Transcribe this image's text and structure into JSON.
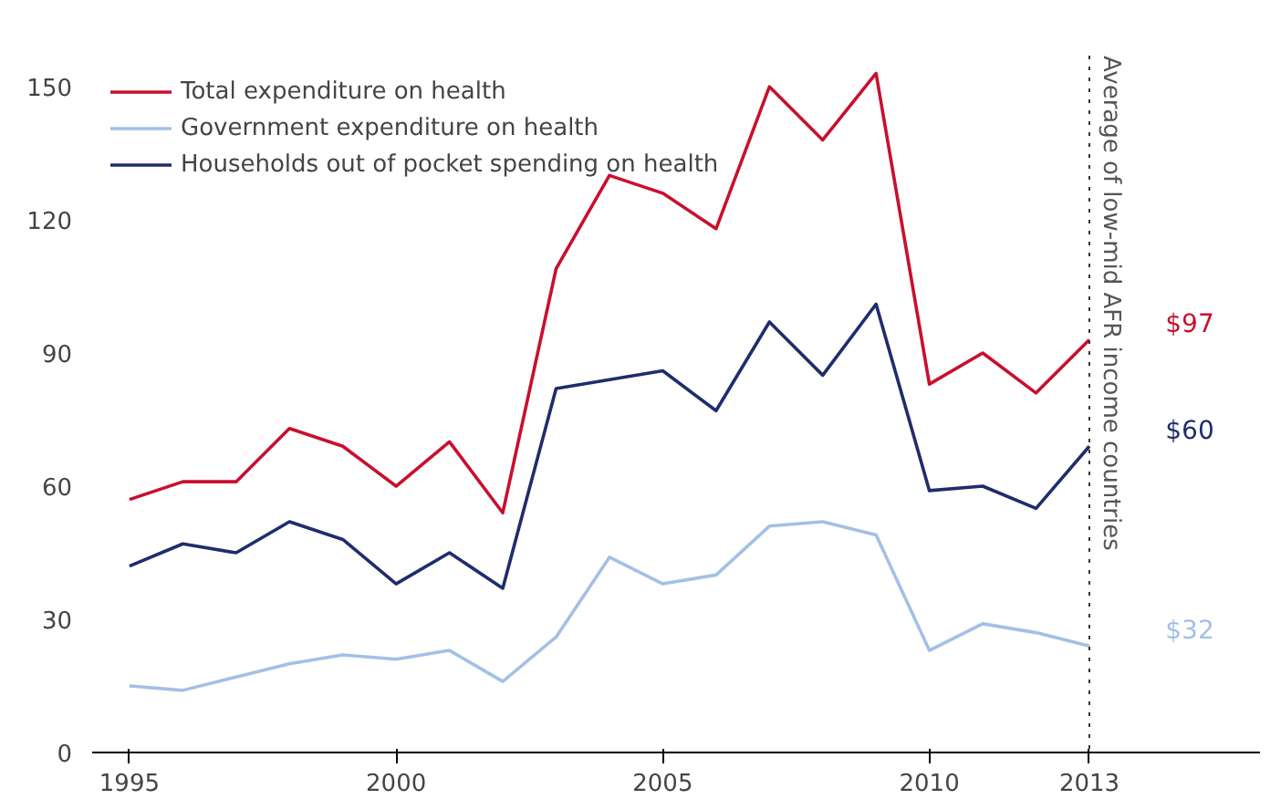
{
  "chart_data": {
    "type": "line",
    "x": [
      1995,
      1996,
      1997,
      1998,
      1999,
      2000,
      2001,
      2002,
      2003,
      2004,
      2005,
      2006,
      2007,
      2008,
      2009,
      2010,
      2011,
      2012,
      2013
    ],
    "series": [
      {
        "name": "Total expenditure on health",
        "color": "#c8102e",
        "values": [
          57,
          61,
          61,
          73,
          69,
          60,
          70,
          54,
          109,
          130,
          126,
          118,
          150,
          138,
          153,
          83,
          90,
          81,
          93
        ]
      },
      {
        "name": "Government expenditure on health",
        "color": "#a3c0e6",
        "values": [
          15,
          14,
          17,
          20,
          22,
          21,
          23,
          16,
          26,
          44,
          38,
          40,
          51,
          52,
          49,
          23,
          29,
          27,
          24
        ]
      },
      {
        "name": "Households out of pocket spending on health",
        "color": "#1f2d6b",
        "values": [
          42,
          47,
          45,
          52,
          48,
          38,
          45,
          37,
          82,
          84,
          86,
          77,
          97,
          85,
          101,
          59,
          60,
          55,
          69
        ]
      }
    ],
    "xlim": [
      1994.3,
      2016.2
    ],
    "ylim": [
      0,
      157
    ],
    "xticks": [
      1995,
      2000,
      2005,
      2010,
      2013
    ],
    "yticks": [
      0,
      30,
      60,
      90,
      120,
      150
    ],
    "ref_lines": [
      {
        "axis": "x",
        "value": 2013,
        "label": "Average of low-mid AFR income countries",
        "color": "#333333",
        "line_style": "dotted"
      }
    ],
    "annotations": [
      "$97",
      "$32",
      "$60"
    ],
    "grid": false,
    "legend": "top left",
    "marker": "none",
    "line_style": "solid"
  }
}
